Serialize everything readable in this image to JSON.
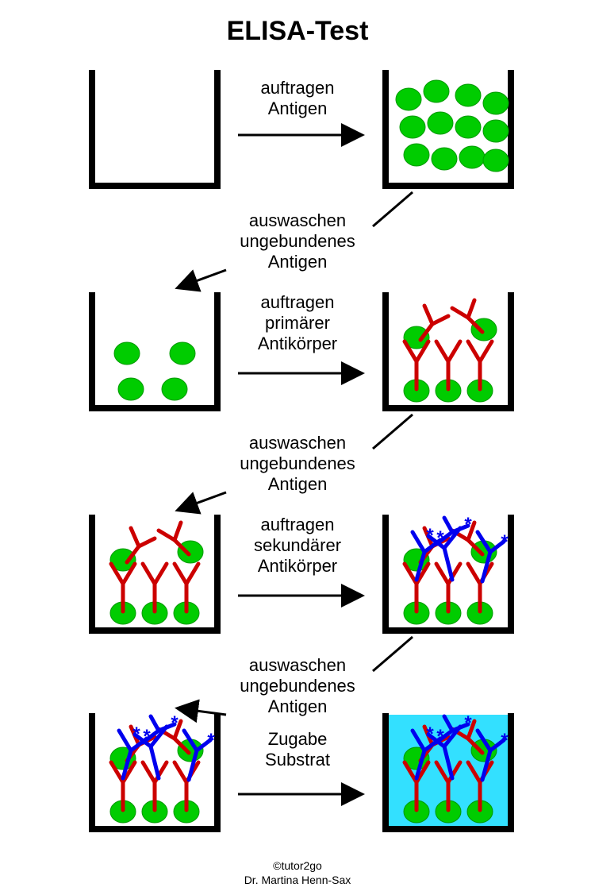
{
  "title": "ELISA-Test",
  "footer_line1": "©tutor2go",
  "footer_line2": "Dr. Martina Henn-Sax",
  "colors": {
    "well_stroke": "#000000",
    "arrow": "#000000",
    "antigen_fill": "#00cc00",
    "antigen_stroke": "#009900",
    "primary_ab": "#cc0000",
    "secondary_ab": "#0000ee",
    "substrate": "#33e0ff",
    "text": "#000000"
  },
  "well": {
    "stroke_width": 8,
    "inner_w": 150,
    "inner_h": 140
  },
  "antigen": {
    "rx": 16,
    "ry": 14
  },
  "antibody": {
    "stroke_width": 5
  },
  "labels": {
    "step1_line1": "auftragen",
    "step1_line2": "Antigen",
    "wash_line1": "auswaschen",
    "wash_line2": "ungebundenes",
    "wash_line3": "Antigen",
    "step2_line1": "auftragen",
    "step2_line2": "primärer",
    "step2_line3": "Antikörper",
    "step3_line1": "auftragen",
    "step3_line2": "sekundärer",
    "step3_line3": "Antikörper",
    "step4_line1": "Zugabe",
    "step4_line2": "Substrat"
  }
}
